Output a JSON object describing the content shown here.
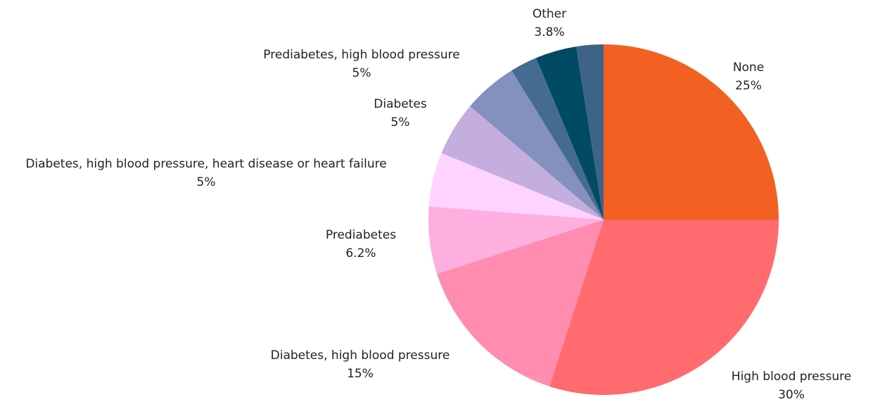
{
  "chart_data": {
    "type": "pie",
    "categories": [
      "None",
      "High blood pressure",
      "Diabetes, high blood pressure",
      "Prediabetes",
      "Diabetes, high blood pressure, heart disease or heart failure",
      "Diabetes",
      "Prediabetes, high blood pressure",
      null,
      "Other",
      null
    ],
    "values": [
      25,
      30,
      15,
      6.2,
      5,
      5,
      5,
      2.5,
      3.8,
      2.5
    ],
    "value_labels": [
      "25%",
      "30%",
      "15%",
      "6.2%",
      "5%",
      "5%",
      "5%",
      null,
      "3.8%",
      null
    ],
    "colors": [
      "#f26122",
      "#ff6b6e",
      "#ff8db0",
      "#ffaee0",
      "#ffd3ff",
      "#c3aede",
      "#8490bd",
      "#466b91",
      "#004a63",
      "#3e6389"
    ]
  }
}
